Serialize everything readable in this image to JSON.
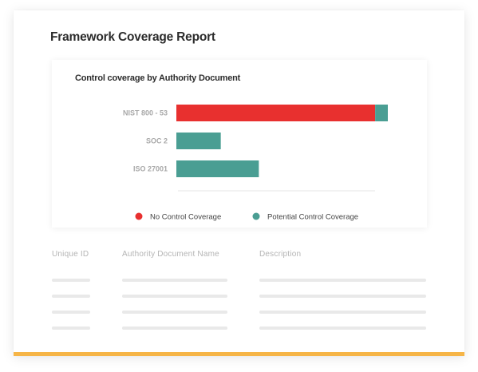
{
  "report": {
    "title": "Framework Coverage Report"
  },
  "colors": {
    "no_coverage": "#e8302f",
    "potential_coverage": "#4a9e93",
    "accent_bar": "#f6b547"
  },
  "chart_data": {
    "type": "bar",
    "orientation": "horizontal",
    "stacked": true,
    "title": "Control coverage by Authority Document",
    "categories": [
      "NIST 800 - 53",
      "SOC 2",
      "ISO 27001"
    ],
    "series": [
      {
        "name": "No Control Coverage",
        "values": [
          94,
          0,
          0
        ]
      },
      {
        "name": "Potential Control Coverage",
        "values": [
          6,
          21,
          39
        ]
      }
    ],
    "xlim": [
      0,
      100
    ],
    "grid": false,
    "legend": "bottom"
  },
  "table": {
    "columns": [
      "Unique ID",
      "Authority Document Name",
      "Description"
    ]
  }
}
